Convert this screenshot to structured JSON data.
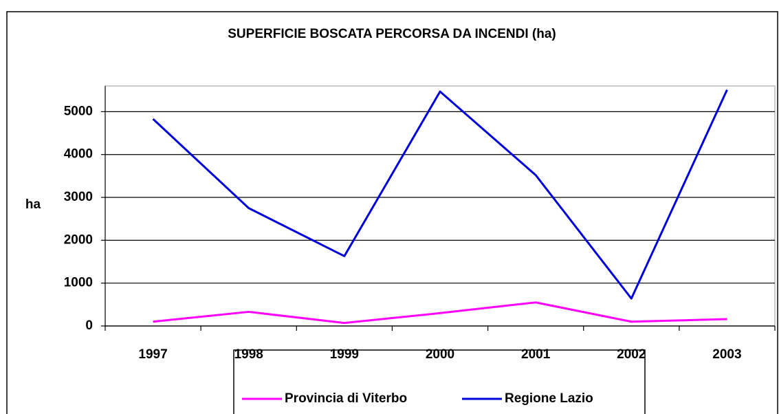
{
  "chart_data": {
    "type": "line",
    "title": "SUPERFICIE BOSCATA PERCORSA DA INCENDI (ha)",
    "y_label": "ha",
    "categories": [
      "1997",
      "1998",
      "1999",
      "2000",
      "2001",
      "2002",
      "2003"
    ],
    "series": [
      {
        "name": "Provincia di Viterbo",
        "color": "#ff00ff",
        "values": [
          100,
          330,
          70,
          300,
          550,
          100,
          160
        ]
      },
      {
        "name": "Regione Lazio",
        "color": "#0000dd",
        "values": [
          4830,
          2750,
          1630,
          5470,
          3520,
          640,
          5510
        ]
      }
    ],
    "ylim": [
      0,
      5600
    ],
    "yticks": [
      0,
      1000,
      2000,
      3000,
      4000,
      5000
    ],
    "grid": true,
    "legend": "bottom"
  }
}
